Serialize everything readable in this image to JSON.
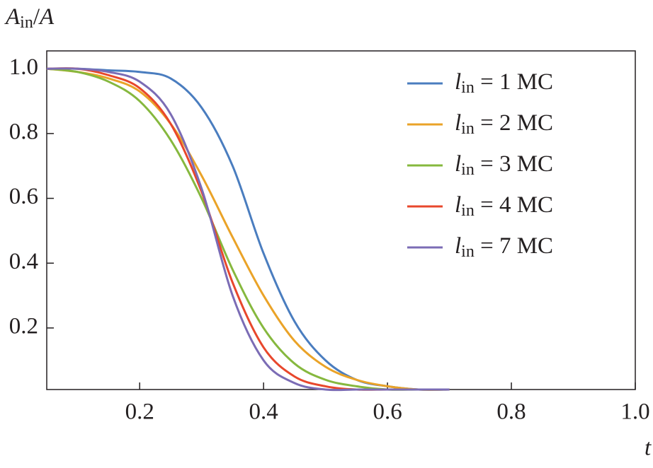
{
  "chart_data": {
    "type": "line",
    "ylabel": "Ain/A",
    "xlabel": "t",
    "x": [
      0.05,
      0.1,
      0.15,
      0.2,
      0.25,
      0.3,
      0.35,
      0.4,
      0.45,
      0.5,
      0.55,
      0.6,
      0.65,
      0.7
    ],
    "series": [
      {
        "name": "lin = 1 MC",
        "color": "#4a7dbf",
        "values": [
          1.0,
          1.0,
          0.995,
          0.99,
          0.97,
          0.88,
          0.7,
          0.43,
          0.22,
          0.1,
          0.04,
          0.02,
          0.01,
          0.01
        ]
      },
      {
        "name": "lin = 2 MC",
        "color": "#eaa328",
        "values": [
          1.0,
          0.99,
          0.97,
          0.93,
          0.83,
          0.67,
          0.48,
          0.3,
          0.16,
          0.08,
          0.04,
          0.02,
          0.01,
          0.01
        ]
      },
      {
        "name": "lin = 3 MC",
        "color": "#86b83e",
        "values": [
          1.0,
          0.99,
          0.96,
          0.9,
          0.78,
          0.6,
          0.38,
          0.2,
          0.09,
          0.04,
          0.02,
          0.01,
          0.01,
          0.01
        ]
      },
      {
        "name": "lin = 4 MC",
        "color": "#e8472c",
        "values": [
          1.0,
          1.0,
          0.98,
          0.94,
          0.83,
          0.62,
          0.34,
          0.14,
          0.05,
          0.02,
          0.01,
          0.01,
          0.01,
          0.01
        ]
      },
      {
        "name": "lin = 7 MC",
        "color": "#7b6cb5",
        "values": [
          1.0,
          1.0,
          0.99,
          0.96,
          0.86,
          0.63,
          0.3,
          0.1,
          0.03,
          0.01,
          0.01,
          0.01,
          0.01,
          0.01
        ]
      }
    ],
    "xlim": [
      0.05,
      1.0
    ],
    "ylim": [
      0.01,
      1.055
    ],
    "xticks": [
      0.2,
      0.4,
      0.6,
      0.8,
      {
        "value": 1.0,
        "label": "1.0"
      }
    ],
    "yticks": [
      {
        "value": 1.0,
        "label": "1.0"
      },
      0.8,
      0.6,
      0.4,
      0.2
    ],
    "legend": "upper right"
  }
}
